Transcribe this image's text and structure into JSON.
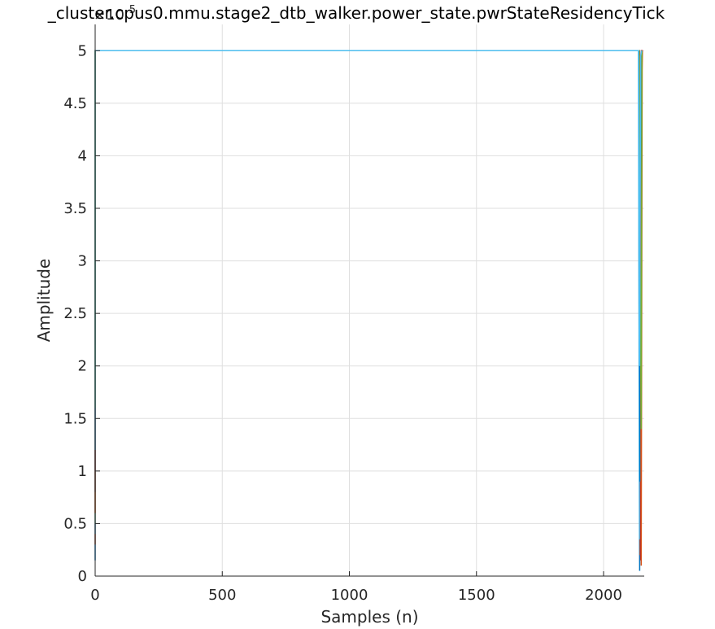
{
  "chart_data": {
    "type": "line",
    "title": "_cluster.cpus0.mmu.stage2_dtb_walker.power_state.pwrStateResidencyTick",
    "xlabel": "Samples (n)",
    "ylabel": "Amplitude",
    "y_exponent_label": "×10",
    "y_exponent_power": "5",
    "xlim": [
      0,
      2160
    ],
    "ylim": [
      0,
      5.25
    ],
    "y_scale_factor": 100000,
    "grid": true,
    "x_ticks": [
      0,
      500,
      1000,
      1500,
      2000
    ],
    "x_tick_labels": [
      "0",
      "500",
      "1000",
      "1500",
      "2000"
    ],
    "y_ticks": [
      0,
      0.5,
      1,
      1.5,
      2,
      2.5,
      3,
      3.5,
      4,
      4.5,
      5
    ],
    "y_tick_labels": [
      "0",
      "0.5",
      "1",
      "1.5",
      "2",
      "2.5",
      "3",
      "3.5",
      "4",
      "4.5",
      "5"
    ],
    "series": [
      {
        "color": "#0072BD",
        "x": [
          0,
          0,
          2138,
          2142,
          2146,
          2150
        ],
        "y": [
          0.15,
          5.0,
          5.0,
          0.05,
          4.9,
          5.0
        ]
      },
      {
        "color": "#D95319",
        "x": [
          0,
          0,
          2140,
          2144,
          2149,
          2153
        ],
        "y": [
          0.3,
          5.0,
          5.0,
          0.2,
          4.6,
          5.0
        ]
      },
      {
        "color": "#EDB120",
        "x": [
          0,
          0,
          2139,
          2143,
          2147,
          2151
        ],
        "y": [
          0.5,
          5.0,
          5.0,
          3.4,
          1.2,
          5.0
        ]
      },
      {
        "color": "#7E2F8E",
        "x": [
          0,
          0,
          2141,
          2145,
          2149,
          2152
        ],
        "y": [
          1.0,
          5.0,
          5.0,
          2.6,
          4.8,
          5.0
        ]
      },
      {
        "color": "#77AC30",
        "x": [
          0,
          0,
          2138,
          2142,
          2146,
          2150
        ],
        "y": [
          2.1,
          5.0,
          5.0,
          1.5,
          2.5,
          5.0
        ]
      },
      {
        "color": "#4DBEEE",
        "x": [
          0,
          0,
          2137,
          2141,
          2145,
          2149
        ],
        "y": [
          0.4,
          5.0,
          5.0,
          0.35,
          2.4,
          5.0
        ]
      },
      {
        "color": "#A2142F",
        "x": [
          0,
          0,
          2142,
          2146,
          2150,
          2154
        ],
        "y": [
          2.2,
          5.0,
          5.0,
          0.15,
          5.0,
          5.0
        ]
      },
      {
        "color": "#0072BD",
        "x": [
          0,
          0,
          2139,
          2143,
          2147,
          2151
        ],
        "y": [
          0.8,
          5.0,
          5.0,
          0.9,
          3.5,
          5.0
        ]
      },
      {
        "color": "#D95319",
        "x": [
          0,
          0,
          2141,
          2145,
          2148,
          2152
        ],
        "y": [
          0.6,
          5.0,
          5.0,
          4.1,
          0.1,
          5.0
        ]
      },
      {
        "color": "#77AC30",
        "x": [
          0,
          0,
          2140,
          2144,
          2148,
          2151
        ],
        "y": [
          1.6,
          5.0,
          5.0,
          2.9,
          1.4,
          5.0
        ]
      },
      {
        "color": "#4DBEEE",
        "x": [
          0,
          0,
          2138,
          2142,
          2146,
          2150
        ],
        "y": [
          1.2,
          5.0,
          5.0,
          2.0,
          4.95,
          5.0
        ]
      }
    ]
  }
}
